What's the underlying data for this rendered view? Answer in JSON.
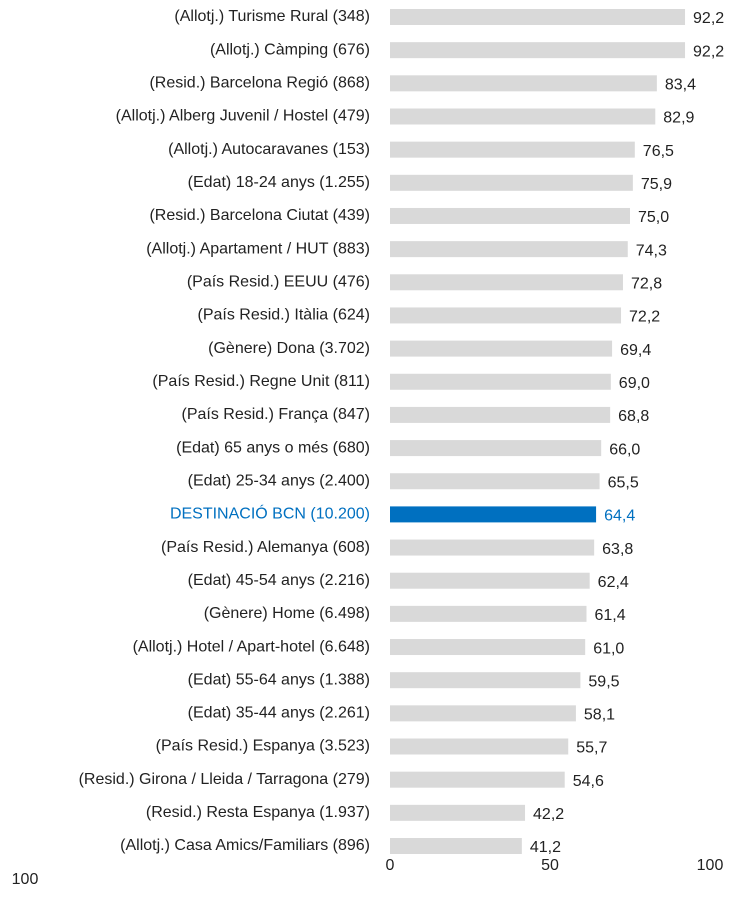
{
  "chart_data": {
    "type": "barh",
    "categories": [
      "(Allotj.) Turisme Rural (348)",
      "(Allotj.) Càmping (676)",
      "(Resid.) Barcelona Regió (868)",
      "(Allotj.) Alberg Juvenil / Hostel  (479)",
      "(Allotj.) Autocaravanes (153)",
      "(Edat) 18-24 anys (1.255)",
      "(Resid.) Barcelona Ciutat (439)",
      "(Allotj.) Apartament / HUT (883)",
      "(País Resid.) EEUU (476)",
      "(País Resid.) Itàlia (624)",
      "(Gènere) Dona (3.702)",
      "(País Resid.) Regne Unit (811)",
      "(País Resid.) França (847)",
      "(Edat) 65 anys o més (680)",
      "(Edat) 25-34 anys  (2.400)",
      "DESTINACIÓ BCN (10.200)",
      "(País Resid.) Alemanya (608)",
      "(Edat) 45-54 anys (2.216)",
      "(Gènere) Home (6.498)",
      "(Allotj.) Hotel / Apart-hotel (6.648)",
      "(Edat) 55-64 anys (1.388)",
      "(Edat) 35-44 anys (2.261)",
      "(País Resid.) Espanya (3.523)",
      "(Resid.) Girona / Lleida / Tarragona (279)",
      "(Resid.) Resta Espanya (1.937)",
      "(Allotj.) Casa Amics/Familiars (896)"
    ],
    "values": [
      92.2,
      92.2,
      83.4,
      82.9,
      76.5,
      75.9,
      75.0,
      74.3,
      72.8,
      72.2,
      69.4,
      69.0,
      68.8,
      66.0,
      65.5,
      64.4,
      63.8,
      62.4,
      61.4,
      61.0,
      59.5,
      58.1,
      55.7,
      54.6,
      42.2,
      41.2
    ],
    "value_labels": [
      "92,2",
      "92,2",
      "83,4",
      "82,9",
      "76,5",
      "75,9",
      "75,0",
      "74,3",
      "72,8",
      "72,2",
      "69,4",
      "69,0",
      "68,8",
      "66,0",
      "65,5",
      "64,4",
      "63,8",
      "62,4",
      "61,4",
      "61,0",
      "59,5",
      "58,1",
      "55,7",
      "54,6",
      "42,2",
      "41,2"
    ],
    "color": "#d9d9d9",
    "highlight": "DESTINACIÓ BCN (10.200)",
    "highlight_color": "#0070c0",
    "xlim": [
      0,
      100
    ],
    "xticks": [
      0,
      50,
      100
    ],
    "annotations": [
      "100"
    ]
  }
}
